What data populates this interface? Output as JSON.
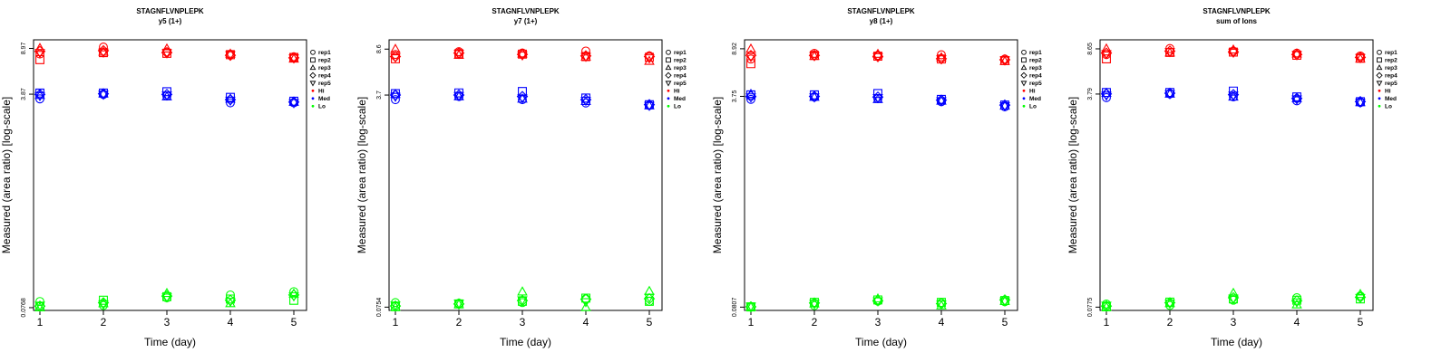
{
  "colors": {
    "Hi": "#ff0000",
    "Med": "#0000ff",
    "Lo": "#00ff00",
    "frame": "#000000"
  },
  "legend": {
    "shape_items": [
      {
        "label": "rep1",
        "shape": "circle"
      },
      {
        "label": "rep2",
        "shape": "square"
      },
      {
        "label": "rep3",
        "shape": "triangle-up"
      },
      {
        "label": "rep4",
        "shape": "diamond"
      },
      {
        "label": "rep5",
        "shape": "triangle-down"
      }
    ],
    "color_items": [
      {
        "label": "Hi",
        "color_key": "Hi"
      },
      {
        "label": "Med",
        "color_key": "Med"
      },
      {
        "label": "Lo",
        "color_key": "Lo"
      }
    ]
  },
  "chart_data": [
    {
      "type": "scatter",
      "title": "STAGNFLVNPLEPK",
      "subtitle": "y5 (1+)",
      "xlabel": "Time (day)",
      "ylabel": "Measured (area ratio) [log-scale]",
      "yscale": "log",
      "x": [
        1,
        2,
        3,
        4,
        5
      ],
      "xlim": [
        0.9,
        5.2
      ],
      "ylim": [
        0.073,
        10.5
      ],
      "xticks": [
        "1",
        "2",
        "3",
        "4",
        "5"
      ],
      "yticks": [
        0.0768,
        3.87,
        8.97
      ],
      "ytick_labels": [
        "0.0768",
        "3.87",
        "8.97"
      ],
      "legend_position": "right, outside plot",
      "series": [
        {
          "level": "Hi",
          "rep": "rep1",
          "values": [
            8.1,
            9.2,
            8.4,
            8.05,
            7.7
          ]
        },
        {
          "level": "Hi",
          "rep": "rep2",
          "values": [
            7.3,
            8.3,
            8.2,
            8.0,
            7.6
          ]
        },
        {
          "level": "Hi",
          "rep": "rep3",
          "values": [
            9.0,
            8.4,
            8.9,
            8.1,
            7.4
          ]
        },
        {
          "level": "Hi",
          "rep": "rep4",
          "values": [
            8.5,
            8.6,
            8.3,
            7.9,
            7.55
          ]
        },
        {
          "level": "Hi",
          "rep": "rep5",
          "values": [
            8.3,
            8.35,
            8.25,
            7.95,
            7.5
          ]
        },
        {
          "level": "Med",
          "rep": "rep1",
          "values": [
            3.55,
            3.85,
            3.75,
            3.3,
            3.3
          ]
        },
        {
          "level": "Med",
          "rep": "rep2",
          "values": [
            3.95,
            3.95,
            4.05,
            3.65,
            3.4
          ]
        },
        {
          "level": "Med",
          "rep": "rep3",
          "values": [
            3.8,
            3.9,
            3.7,
            3.55,
            3.35
          ]
        },
        {
          "level": "Med",
          "rep": "rep4",
          "values": [
            3.85,
            3.9,
            3.85,
            3.5,
            3.35
          ]
        },
        {
          "level": "Med",
          "rep": "rep5",
          "values": [
            3.75,
            3.85,
            3.8,
            3.45,
            3.3
          ]
        },
        {
          "level": "Lo",
          "rep": "rep1",
          "values": [
            0.086,
            0.08,
            0.092,
            0.097,
            0.103
          ]
        },
        {
          "level": "Lo",
          "rep": "rep2",
          "values": [
            0.078,
            0.088,
            0.094,
            0.09,
            0.088
          ]
        },
        {
          "level": "Lo",
          "rep": "rep3",
          "values": [
            0.0768,
            0.083,
            0.1,
            0.083,
            0.099
          ]
        },
        {
          "level": "Lo",
          "rep": "rep4",
          "values": [
            0.079,
            0.084,
            0.095,
            0.088,
            0.097
          ]
        },
        {
          "level": "Lo",
          "rep": "rep5",
          "values": [
            0.08,
            0.082,
            0.093,
            0.086,
            0.095
          ]
        }
      ]
    },
    {
      "type": "scatter",
      "title": "STAGNFLVNPLEPK",
      "subtitle": "y7 (1+)",
      "xlabel": "Time (day)",
      "ylabel": "Measured (area ratio) [log-scale]",
      "yscale": "log",
      "x": [
        1,
        2,
        3,
        4,
        5
      ],
      "xlim": [
        0.9,
        5.2
      ],
      "ylim": [
        0.071,
        10.2
      ],
      "xticks": [
        "1",
        "2",
        "3",
        "4",
        "5"
      ],
      "yticks": [
        0.0754,
        3.7,
        8.6
      ],
      "ytick_labels": [
        "0.0754",
        "3.7",
        "8.6"
      ],
      "legend_position": "right, outside plot",
      "series": [
        {
          "level": "Hi",
          "rep": "rep1",
          "values": [
            7.8,
            8.2,
            8.0,
            8.3,
            7.6
          ]
        },
        {
          "level": "Hi",
          "rep": "rep2",
          "values": [
            7.2,
            7.9,
            7.85,
            7.5,
            7.4
          ]
        },
        {
          "level": "Hi",
          "rep": "rep3",
          "values": [
            8.6,
            7.7,
            7.9,
            7.45,
            6.9
          ]
        },
        {
          "level": "Hi",
          "rep": "rep4",
          "values": [
            7.5,
            8.0,
            7.8,
            7.6,
            7.5
          ]
        },
        {
          "level": "Hi",
          "rep": "rep5",
          "values": [
            7.4,
            7.9,
            7.7,
            7.5,
            7.3
          ]
        },
        {
          "level": "Med",
          "rep": "rep1",
          "values": [
            3.4,
            3.6,
            3.4,
            3.2,
            3.05
          ]
        },
        {
          "level": "Med",
          "rep": "rep2",
          "values": [
            3.8,
            3.85,
            3.95,
            3.5,
            3.1
          ]
        },
        {
          "level": "Med",
          "rep": "rep3",
          "values": [
            3.75,
            3.6,
            3.45,
            3.3,
            3.05
          ]
        },
        {
          "level": "Med",
          "rep": "rep4",
          "values": [
            3.7,
            3.7,
            3.6,
            3.4,
            3.1
          ]
        },
        {
          "level": "Med",
          "rep": "rep5",
          "values": [
            3.6,
            3.65,
            3.5,
            3.35,
            3.05
          ]
        },
        {
          "level": "Lo",
          "rep": "rep1",
          "values": [
            0.082,
            0.081,
            0.082,
            0.088,
            0.084
          ]
        },
        {
          "level": "Lo",
          "rep": "rep2",
          "values": [
            0.076,
            0.08,
            0.084,
            0.089,
            0.084
          ]
        },
        {
          "level": "Lo",
          "rep": "rep3",
          "values": [
            0.0754,
            0.079,
            0.1,
            0.075,
            0.101
          ]
        },
        {
          "level": "Lo",
          "rep": "rep4",
          "values": [
            0.077,
            0.08,
            0.085,
            0.087,
            0.088
          ]
        },
        {
          "level": "Lo",
          "rep": "rep5",
          "values": [
            0.078,
            0.081,
            0.086,
            0.083,
            0.09
          ]
        }
      ]
    },
    {
      "type": "scatter",
      "title": "STAGNFLVNPLEPK",
      "subtitle": "y8 (1+)",
      "xlabel": "Time (day)",
      "ylabel": "Measured (area ratio) [log-scale]",
      "yscale": "log",
      "x": [
        1,
        2,
        3,
        4,
        5
      ],
      "xlim": [
        0.9,
        5.2
      ],
      "ylim": [
        0.076,
        10.5
      ],
      "xticks": [
        "1",
        "2",
        "3",
        "4",
        "5"
      ],
      "yticks": [
        0.0807,
        3.75,
        8.92
      ],
      "ytick_labels": [
        "0.0807",
        "3.75",
        "8.92"
      ],
      "legend_position": "right, outside plot",
      "series": [
        {
          "level": "Hi",
          "rep": "rep1",
          "values": [
            7.4,
            8.2,
            7.9,
            8.0,
            7.4
          ]
        },
        {
          "level": "Hi",
          "rep": "rep2",
          "values": [
            6.8,
            7.9,
            7.8,
            7.4,
            7.2
          ]
        },
        {
          "level": "Hi",
          "rep": "rep3",
          "values": [
            8.9,
            7.8,
            8.1,
            7.6,
            7.1
          ]
        },
        {
          "level": "Hi",
          "rep": "rep4",
          "values": [
            7.9,
            7.9,
            7.75,
            7.45,
            7.3
          ]
        },
        {
          "level": "Hi",
          "rep": "rep5",
          "values": [
            7.7,
            7.85,
            7.7,
            7.4,
            7.25
          ]
        },
        {
          "level": "Med",
          "rep": "rep1",
          "values": [
            3.55,
            3.7,
            3.6,
            3.4,
            3.1
          ]
        },
        {
          "level": "Med",
          "rep": "rep2",
          "values": [
            3.85,
            3.85,
            3.95,
            3.55,
            3.2
          ]
        },
        {
          "level": "Med",
          "rep": "rep3",
          "values": [
            3.9,
            3.7,
            3.55,
            3.45,
            3.15
          ]
        },
        {
          "level": "Med",
          "rep": "rep4",
          "values": [
            3.75,
            3.75,
            3.7,
            3.5,
            3.2
          ]
        },
        {
          "level": "Med",
          "rep": "rep5",
          "values": [
            3.7,
            3.7,
            3.65,
            3.45,
            3.15
          ]
        },
        {
          "level": "Lo",
          "rep": "rep1",
          "values": [
            0.0815,
            0.083,
            0.09,
            0.087,
            0.089
          ]
        },
        {
          "level": "Lo",
          "rep": "rep2",
          "values": [
            0.081,
            0.088,
            0.092,
            0.088,
            0.091
          ]
        },
        {
          "level": "Lo",
          "rep": "rep3",
          "values": [
            0.0807,
            0.086,
            0.094,
            0.083,
            0.09
          ]
        },
        {
          "level": "Lo",
          "rep": "rep4",
          "values": [
            0.0812,
            0.087,
            0.091,
            0.086,
            0.092
          ]
        },
        {
          "level": "Lo",
          "rep": "rep5",
          "values": [
            0.082,
            0.086,
            0.09,
            0.085,
            0.09
          ]
        }
      ]
    },
    {
      "type": "scatter",
      "title": "STAGNFLVNPLEPK",
      "subtitle": "sum of Ions",
      "xlabel": "Time (day)",
      "ylabel": "Measured (area ratio) [log-scale]",
      "yscale": "log",
      "x": [
        1,
        2,
        3,
        4,
        5
      ],
      "xlim": [
        0.9,
        5.2
      ],
      "ylim": [
        0.073,
        10.2
      ],
      "xticks": [
        "1",
        "2",
        "3",
        "4",
        "5"
      ],
      "yticks": [
        0.0775,
        3.79,
        8.65
      ],
      "ytick_labels": [
        "0.0775",
        "3.79",
        "8.65"
      ],
      "legend_position": "right, outside plot",
      "series": [
        {
          "level": "Hi",
          "rep": "rep1",
          "values": [
            7.8,
            8.7,
            8.3,
            8.0,
            7.6
          ]
        },
        {
          "level": "Hi",
          "rep": "rep2",
          "values": [
            7.2,
            8.1,
            8.15,
            7.7,
            7.3
          ]
        },
        {
          "level": "Hi",
          "rep": "rep3",
          "values": [
            8.65,
            8.05,
            8.5,
            7.9,
            7.2
          ]
        },
        {
          "level": "Hi",
          "rep": "rep4",
          "values": [
            8.0,
            8.3,
            8.2,
            7.8,
            7.4
          ]
        },
        {
          "level": "Hi",
          "rep": "rep5",
          "values": [
            7.9,
            8.2,
            8.1,
            7.75,
            7.35
          ]
        },
        {
          "level": "Med",
          "rep": "rep1",
          "values": [
            3.55,
            3.8,
            3.6,
            3.35,
            3.25
          ]
        },
        {
          "level": "Med",
          "rep": "rep2",
          "values": [
            3.9,
            3.9,
            4.0,
            3.6,
            3.3
          ]
        },
        {
          "level": "Med",
          "rep": "rep3",
          "values": [
            3.85,
            3.8,
            3.6,
            3.5,
            3.25
          ]
        },
        {
          "level": "Med",
          "rep": "rep4",
          "values": [
            3.8,
            3.85,
            3.75,
            3.5,
            3.3
          ]
        },
        {
          "level": "Med",
          "rep": "rep5",
          "values": [
            3.7,
            3.8,
            3.7,
            3.45,
            3.25
          ]
        },
        {
          "level": "Lo",
          "rep": "rep1",
          "values": [
            0.082,
            0.08,
            0.088,
            0.092,
            0.095
          ]
        },
        {
          "level": "Lo",
          "rep": "rep2",
          "values": [
            0.078,
            0.085,
            0.09,
            0.088,
            0.09
          ]
        },
        {
          "level": "Lo",
          "rep": "rep3",
          "values": [
            0.0775,
            0.083,
            0.1,
            0.081,
            0.098
          ]
        },
        {
          "level": "Lo",
          "rep": "rep4",
          "values": [
            0.079,
            0.084,
            0.092,
            0.087,
            0.093
          ]
        },
        {
          "level": "Lo",
          "rep": "rep5",
          "values": [
            0.08,
            0.083,
            0.091,
            0.085,
            0.092
          ]
        }
      ]
    }
  ]
}
